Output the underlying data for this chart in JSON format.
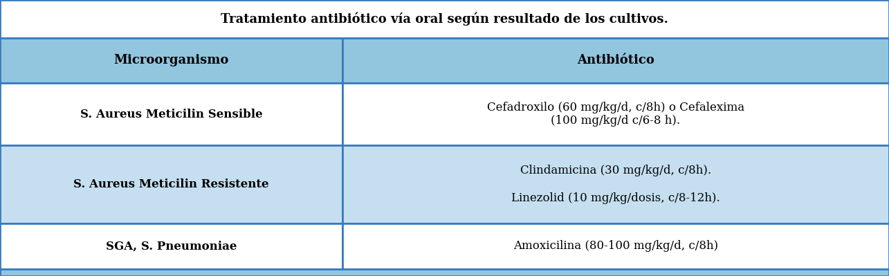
{
  "title": "Tratamiento antibiótico vía oral según resultado de los cultivos.",
  "columns": [
    "Microorganismo",
    "Antibiótico"
  ],
  "rows": [
    {
      "micro": "S. Aureus Meticilin Sensible",
      "anti": "Cefadroxilo (60 mg/kg/d, c/8h) o Cefalexima\n(100 mg/kg/d c/6-8 h)."
    },
    {
      "micro": "S. Aureus Meticilin Resistente",
      "anti": "Clindamicina (30 mg/kg/d, c/8h).\n\nLinezolid (10 mg/kg/dosis, c/8-12h)."
    },
    {
      "micro": "SGA, S. Pneumoniae",
      "anti": "Amoxicilina (80-100 mg/kg/d, c/8h)"
    }
  ],
  "title_bg": "#ffffff",
  "header_bg": "#92c5de",
  "row_bg_white": "#ffffff",
  "row_bg_blue": "#c5dff0",
  "bottom_strip_bg": "#92c5de",
  "border_color": "#3a7bbf",
  "title_fontsize": 13,
  "header_fontsize": 13,
  "cell_fontsize": 12,
  "col_split": 0.385,
  "lw": 2.0
}
